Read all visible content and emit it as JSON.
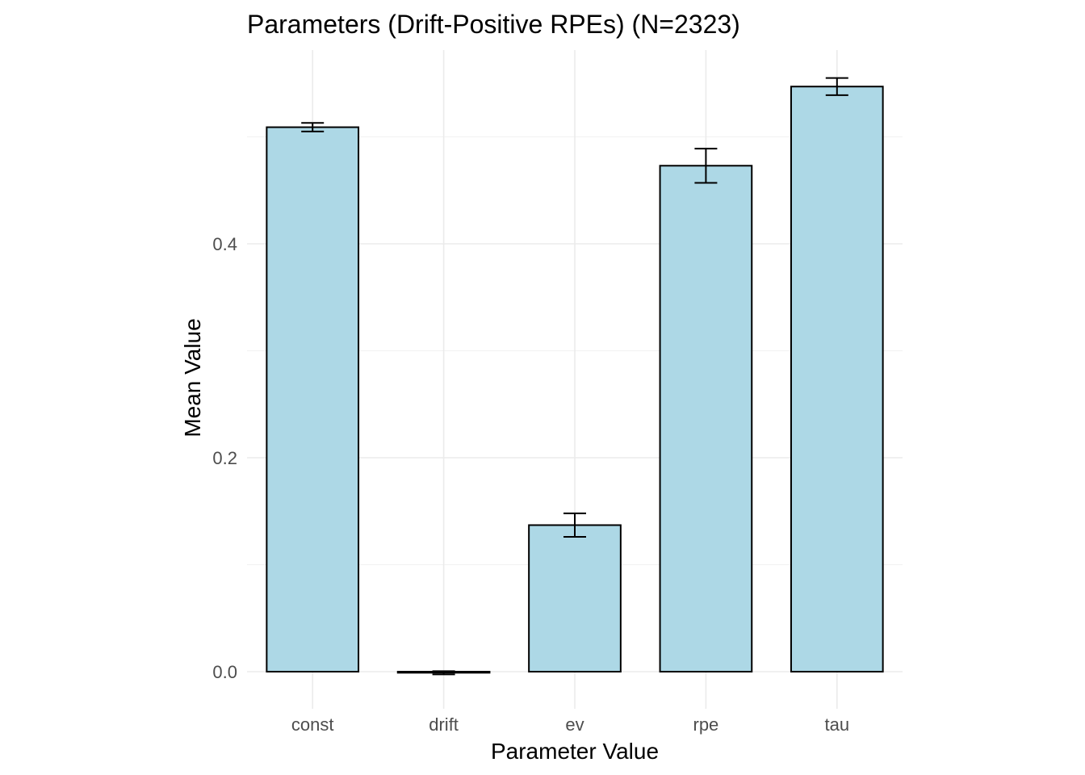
{
  "chart_data": {
    "type": "bar",
    "title": "Parameters (Drift-Positive RPEs) (N=2323)",
    "xlabel": "Parameter Value",
    "ylabel": "Mean Value",
    "categories": [
      "const",
      "drift",
      "ev",
      "rpe",
      "tau"
    ],
    "values": [
      0.509,
      -0.001,
      0.137,
      0.473,
      0.547
    ],
    "error_low": [
      0.505,
      -0.0025,
      0.126,
      0.457,
      0.539
    ],
    "error_high": [
      0.513,
      0.0005,
      0.148,
      0.489,
      0.555
    ],
    "ylim": [
      -0.028,
      0.585
    ],
    "yticks": [
      0.0,
      0.2,
      0.4
    ],
    "ytick_labels": [
      "0.0",
      "0.2",
      "0.4"
    ],
    "grid": true,
    "legend": "none",
    "bar_color": "#add8e6",
    "bar_outline": "#000000"
  }
}
